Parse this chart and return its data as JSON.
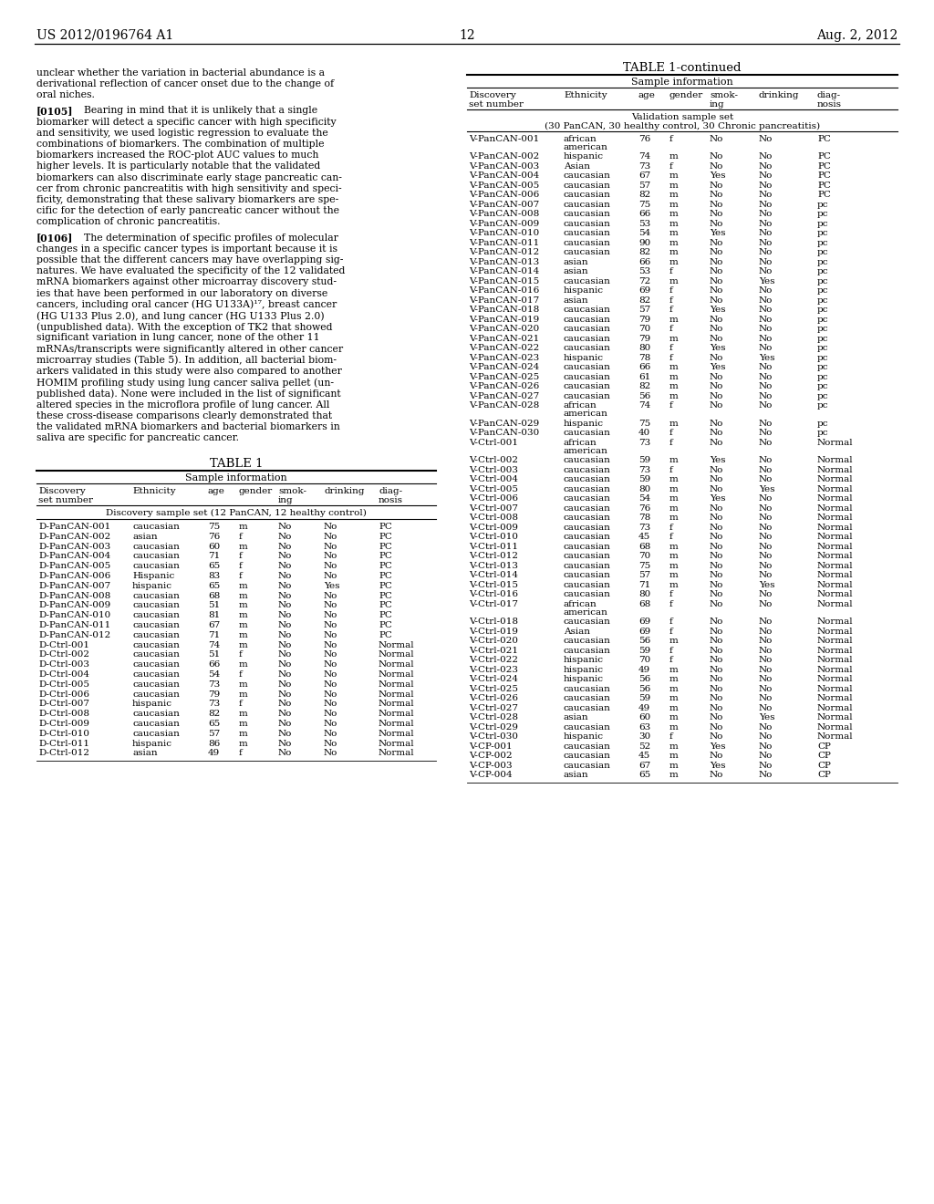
{
  "page_number": "12",
  "patent_number": "US 2012/0196764 A1",
  "date": "Aug. 2, 2012",
  "bg_color": "#ffffff",
  "para0_lines": [
    "unclear whether the variation in bacterial abundance is a",
    "derivational reflection of cancer onset due to the change of",
    "oral niches."
  ],
  "para1_tag": "[0105]",
  "para1_lines": [
    "    Bearing in mind that it is unlikely that a single",
    "biomarker will detect a specific cancer with high specificity",
    "and sensitivity, we used logistic regression to evaluate the",
    "combinations of biomarkers. The combination of multiple",
    "biomarkers increased the ROC-plot AUC values to much",
    "higher levels. It is particularly notable that the validated",
    "biomarkers can also discriminate early stage pancreatic can-",
    "cer from chronic pancreatitis with high sensitivity and speci-",
    "ficity, demonstrating that these salivary biomarkers are spe-",
    "cific for the detection of early pancreatic cancer without the",
    "complication of chronic pancreatitis."
  ],
  "para2_tag": "[0106]",
  "para2_lines": [
    "    The determination of specific profiles of molecular",
    "changes in a specific cancer types is important because it is",
    "possible that the different cancers may have overlapping sig-",
    "natures. We have evaluated the specificity of the 12 validated",
    "mRNA biomarkers against other microarray discovery stud-",
    "ies that have been performed in our laboratory on diverse",
    "cancers, including oral cancer (HG U133A)¹⁷, breast cancer",
    "(HG U133 Plus 2.0), and lung cancer (HG U133 Plus 2.0)",
    "(unpublished data). With the exception of TK2 that showed",
    "significant variation in lung cancer, none of the other 11",
    "mRNAs/transcripts were significantly altered in other cancer",
    "microarray studies (Table 5). In addition, all bacterial biom-",
    "arkers validated in this study were also compared to another",
    "HOMIM profiling study using lung cancer saliva pellet (un-",
    "published data). None were included in the list of significant",
    "altered species in the microflora profile of lung cancer. All",
    "these cross-disease comparisons clearly demonstrated that",
    "the validated mRNA biomarkers and bacterial biomarkers in",
    "saliva are specific for pancreatic cancer."
  ],
  "table1_title": "TABLE 1",
  "table1_subtitle": "Sample information",
  "table1_subgroup": "Discovery sample set (12 PanCAN, 12 healthy control)",
  "table1_data": [
    [
      "D-PanCAN-001",
      "caucasian",
      "75",
      "m",
      "No",
      "No",
      "PC"
    ],
    [
      "D-PanCAN-002",
      "asian",
      "76",
      "f",
      "No",
      "No",
      "PC"
    ],
    [
      "D-PanCAN-003",
      "caucasian",
      "60",
      "m",
      "No",
      "No",
      "PC"
    ],
    [
      "D-PanCAN-004",
      "caucasian",
      "71",
      "f",
      "No",
      "No",
      "PC"
    ],
    [
      "D-PanCAN-005",
      "caucasian",
      "65",
      "f",
      "No",
      "No",
      "PC"
    ],
    [
      "D-PanCAN-006",
      "Hispanic",
      "83",
      "f",
      "No",
      "No",
      "PC"
    ],
    [
      "D-PanCAN-007",
      "hispanic",
      "65",
      "m",
      "No",
      "Yes",
      "PC"
    ],
    [
      "D-PanCAN-008",
      "caucasian",
      "68",
      "m",
      "No",
      "No",
      "PC"
    ],
    [
      "D-PanCAN-009",
      "caucasian",
      "51",
      "m",
      "No",
      "No",
      "PC"
    ],
    [
      "D-PanCAN-010",
      "caucasian",
      "81",
      "m",
      "No",
      "No",
      "PC"
    ],
    [
      "D-PanCAN-011",
      "caucasian",
      "67",
      "m",
      "No",
      "No",
      "PC"
    ],
    [
      "D-PanCAN-012",
      "caucasian",
      "71",
      "m",
      "No",
      "No",
      "PC"
    ],
    [
      "D-Ctrl-001",
      "caucasian",
      "74",
      "m",
      "No",
      "No",
      "Normal"
    ],
    [
      "D-Ctrl-002",
      "caucasian",
      "51",
      "f",
      "No",
      "No",
      "Normal"
    ],
    [
      "D-Ctrl-003",
      "caucasian",
      "66",
      "m",
      "No",
      "No",
      "Normal"
    ],
    [
      "D-Ctrl-004",
      "caucasian",
      "54",
      "f",
      "No",
      "No",
      "Normal"
    ],
    [
      "D-Ctrl-005",
      "caucasian",
      "73",
      "m",
      "No",
      "No",
      "Normal"
    ],
    [
      "D-Ctrl-006",
      "caucasian",
      "79",
      "m",
      "No",
      "No",
      "Normal"
    ],
    [
      "D-Ctrl-007",
      "hispanic",
      "73",
      "f",
      "No",
      "No",
      "Normal"
    ],
    [
      "D-Ctrl-008",
      "caucasian",
      "82",
      "m",
      "No",
      "No",
      "Normal"
    ],
    [
      "D-Ctrl-009",
      "caucasian",
      "65",
      "m",
      "No",
      "No",
      "Normal"
    ],
    [
      "D-Ctrl-010",
      "caucasian",
      "57",
      "m",
      "No",
      "No",
      "Normal"
    ],
    [
      "D-Ctrl-011",
      "hispanic",
      "86",
      "m",
      "No",
      "No",
      "Normal"
    ],
    [
      "D-Ctrl-012",
      "asian",
      "49",
      "f",
      "No",
      "No",
      "Normal"
    ]
  ],
  "table1cont_title": "TABLE 1-continued",
  "table1cont_subtitle": "Sample information",
  "table1cont_subgroup_line1": "Validation sample set",
  "table1cont_subgroup_line2": "(30 PanCAN, 30 healthy control, 30 Chronic pancreatitis)",
  "table1cont_data": [
    [
      "V-PanCAN-001",
      "african american",
      "76",
      "f",
      "No",
      "No",
      "PC"
    ],
    [
      "V-PanCAN-002",
      "hispanic",
      "74",
      "m",
      "No",
      "No",
      "PC"
    ],
    [
      "V-PanCAN-003",
      "Asian",
      "73",
      "f",
      "No",
      "No",
      "PC"
    ],
    [
      "V-PanCAN-004",
      "caucasian",
      "67",
      "m",
      "Yes",
      "No",
      "PC"
    ],
    [
      "V-PanCAN-005",
      "caucasian",
      "57",
      "m",
      "No",
      "No",
      "PC"
    ],
    [
      "V-PanCAN-006",
      "caucasian",
      "82",
      "m",
      "No",
      "No",
      "PC"
    ],
    [
      "V-PanCAN-007",
      "caucasian",
      "75",
      "m",
      "No",
      "No",
      "pc"
    ],
    [
      "V-PanCAN-008",
      "caucasian",
      "66",
      "m",
      "No",
      "No",
      "pc"
    ],
    [
      "V-PanCAN-009",
      "caucasian",
      "53",
      "m",
      "No",
      "No",
      "pc"
    ],
    [
      "V-PanCAN-010",
      "caucasian",
      "54",
      "m",
      "Yes",
      "No",
      "pc"
    ],
    [
      "V-PanCAN-011",
      "caucasian",
      "90",
      "m",
      "No",
      "No",
      "pc"
    ],
    [
      "V-PanCAN-012",
      "caucasian",
      "82",
      "m",
      "No",
      "No",
      "pc"
    ],
    [
      "V-PanCAN-013",
      "asian",
      "66",
      "m",
      "No",
      "No",
      "pc"
    ],
    [
      "V-PanCAN-014",
      "asian",
      "53",
      "f",
      "No",
      "No",
      "pc"
    ],
    [
      "V-PanCAN-015",
      "caucasian",
      "72",
      "m",
      "No",
      "Yes",
      "pc"
    ],
    [
      "V-PanCAN-016",
      "hispanic",
      "69",
      "f",
      "No",
      "No",
      "pc"
    ],
    [
      "V-PanCAN-017",
      "asian",
      "82",
      "f",
      "No",
      "No",
      "pc"
    ],
    [
      "V-PanCAN-018",
      "caucasian",
      "57",
      "f",
      "Yes",
      "No",
      "pc"
    ],
    [
      "V-PanCAN-019",
      "caucasian",
      "79",
      "m",
      "No",
      "No",
      "pc"
    ],
    [
      "V-PanCAN-020",
      "caucasian",
      "70",
      "f",
      "No",
      "No",
      "pc"
    ],
    [
      "V-PanCAN-021",
      "caucasian",
      "79",
      "m",
      "No",
      "No",
      "pc"
    ],
    [
      "V-PanCAN-022",
      "caucasian",
      "80",
      "f",
      "Yes",
      "No",
      "pc"
    ],
    [
      "V-PanCAN-023",
      "hispanic",
      "78",
      "f",
      "No",
      "Yes",
      "pc"
    ],
    [
      "V-PanCAN-024",
      "caucasian",
      "66",
      "m",
      "Yes",
      "No",
      "pc"
    ],
    [
      "V-PanCAN-025",
      "caucasian",
      "61",
      "m",
      "No",
      "No",
      "pc"
    ],
    [
      "V-PanCAN-026",
      "caucasian",
      "82",
      "m",
      "No",
      "No",
      "pc"
    ],
    [
      "V-PanCAN-027",
      "caucasian",
      "56",
      "m",
      "No",
      "No",
      "pc"
    ],
    [
      "V-PanCAN-028",
      "african american",
      "74",
      "f",
      "No",
      "No",
      "pc"
    ],
    [
      "V-PanCAN-029",
      "hispanic",
      "75",
      "m",
      "No",
      "No",
      "pc"
    ],
    [
      "V-PanCAN-030",
      "caucasian",
      "40",
      "f",
      "No",
      "No",
      "pc"
    ],
    [
      "V-Ctrl-001",
      "african american",
      "73",
      "f",
      "No",
      "No",
      "Normal"
    ],
    [
      "V-Ctrl-002",
      "caucasian",
      "59",
      "m",
      "Yes",
      "No",
      "Normal"
    ],
    [
      "V-Ctrl-003",
      "caucasian",
      "73",
      "f",
      "No",
      "No",
      "Normal"
    ],
    [
      "V-Ctrl-004",
      "caucasian",
      "59",
      "m",
      "No",
      "No",
      "Normal"
    ],
    [
      "V-Ctrl-005",
      "caucasian",
      "80",
      "m",
      "No",
      "Yes",
      "Normal"
    ],
    [
      "V-Ctrl-006",
      "caucasian",
      "54",
      "m",
      "Yes",
      "No",
      "Normal"
    ],
    [
      "V-Ctrl-007",
      "caucasian",
      "76",
      "m",
      "No",
      "No",
      "Normal"
    ],
    [
      "V-Ctrl-008",
      "caucasian",
      "78",
      "m",
      "No",
      "No",
      "Normal"
    ],
    [
      "V-Ctrl-009",
      "caucasian",
      "73",
      "f",
      "No",
      "No",
      "Normal"
    ],
    [
      "V-Ctrl-010",
      "caucasian",
      "45",
      "f",
      "No",
      "No",
      "Normal"
    ],
    [
      "V-Ctrl-011",
      "caucasian",
      "68",
      "m",
      "No",
      "No",
      "Normal"
    ],
    [
      "V-Ctrl-012",
      "caucasian",
      "70",
      "m",
      "No",
      "No",
      "Normal"
    ],
    [
      "V-Ctrl-013",
      "caucasian",
      "75",
      "m",
      "No",
      "No",
      "Normal"
    ],
    [
      "V-Ctrl-014",
      "caucasian",
      "57",
      "m",
      "No",
      "No",
      "Normal"
    ],
    [
      "V-Ctrl-015",
      "caucasian",
      "71",
      "m",
      "No",
      "Yes",
      "Normal"
    ],
    [
      "V-Ctrl-016",
      "caucasian",
      "80",
      "f",
      "No",
      "No",
      "Normal"
    ],
    [
      "V-Ctrl-017",
      "african american",
      "68",
      "f",
      "No",
      "No",
      "Normal"
    ],
    [
      "V-Ctrl-018",
      "caucasian",
      "69",
      "f",
      "No",
      "No",
      "Normal"
    ],
    [
      "V-Ctrl-019",
      "Asian",
      "69",
      "f",
      "No",
      "No",
      "Normal"
    ],
    [
      "V-Ctrl-020",
      "caucasian",
      "56",
      "m",
      "No",
      "No",
      "Normal"
    ],
    [
      "V-Ctrl-021",
      "caucasian",
      "59",
      "f",
      "No",
      "No",
      "Normal"
    ],
    [
      "V-Ctrl-022",
      "hispanic",
      "70",
      "f",
      "No",
      "No",
      "Normal"
    ],
    [
      "V-Ctrl-023",
      "hispanic",
      "49",
      "m",
      "No",
      "No",
      "Normal"
    ],
    [
      "V-Ctrl-024",
      "hispanic",
      "56",
      "m",
      "No",
      "No",
      "Normal"
    ],
    [
      "V-Ctrl-025",
      "caucasian",
      "56",
      "m",
      "No",
      "No",
      "Normal"
    ],
    [
      "V-Ctrl-026",
      "caucasian",
      "59",
      "m",
      "No",
      "No",
      "Normal"
    ],
    [
      "V-Ctrl-027",
      "caucasian",
      "49",
      "m",
      "No",
      "No",
      "Normal"
    ],
    [
      "V-Ctrl-028",
      "asian",
      "60",
      "m",
      "No",
      "Yes",
      "Normal"
    ],
    [
      "V-Ctrl-029",
      "caucasian",
      "63",
      "m",
      "No",
      "No",
      "Normal"
    ],
    [
      "V-Ctrl-030",
      "hispanic",
      "30",
      "f",
      "No",
      "No",
      "Normal"
    ],
    [
      "V-CP-001",
      "caucasian",
      "52",
      "m",
      "Yes",
      "No",
      "CP"
    ],
    [
      "V-CP-002",
      "caucasian",
      "45",
      "m",
      "No",
      "No",
      "CP"
    ],
    [
      "V-CP-003",
      "caucasian",
      "67",
      "m",
      "Yes",
      "No",
      "CP"
    ],
    [
      "V-CP-004",
      "asian",
      "65",
      "m",
      "No",
      "No",
      "CP"
    ]
  ],
  "col_headers": [
    "Discovery\nset number",
    "Ethnicity",
    "age",
    "gender",
    "smok-\ning",
    "drinking",
    "diag-\nnosis"
  ]
}
